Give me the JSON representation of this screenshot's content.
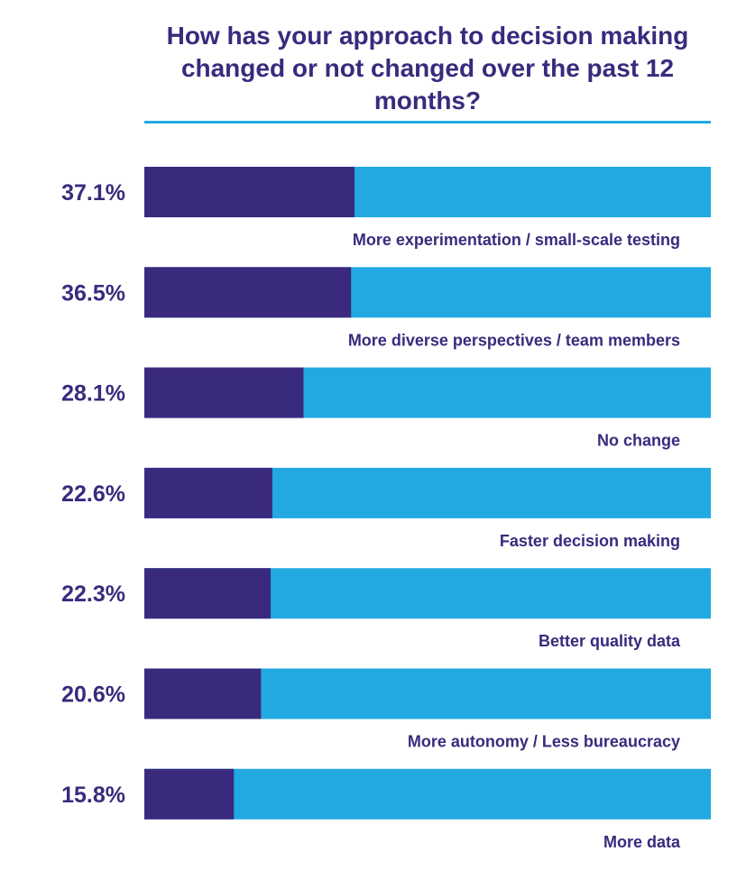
{
  "title": "How has your approach to decision making changed or not changed over the past 12 months?",
  "colors": {
    "value": "#3a2a7d",
    "remainder": "#22a9e2",
    "text": "#3a2a7d",
    "rule": "#22a9e2"
  },
  "chart_data": {
    "type": "bar",
    "orientation": "horizontal",
    "stacked_to_100": true,
    "title": "How has your approach to decision making changed or not changed over the past 12 months?",
    "categories": [
      "More experimentation / small-scale testing",
      "More diverse perspectives / team members",
      "No change",
      "Faster decision making",
      "Better quality data",
      "More autonomy / Less bureaucracy",
      "More data"
    ],
    "values": [
      37.1,
      36.5,
      28.1,
      22.6,
      22.3,
      20.6,
      15.8
    ],
    "value_labels": [
      "37.1%",
      "36.5%",
      "28.1%",
      "22.6%",
      "22.3%",
      "20.6%",
      "15.8%"
    ],
    "xlim": [
      0,
      100
    ],
    "grid": false,
    "legend": "none"
  }
}
